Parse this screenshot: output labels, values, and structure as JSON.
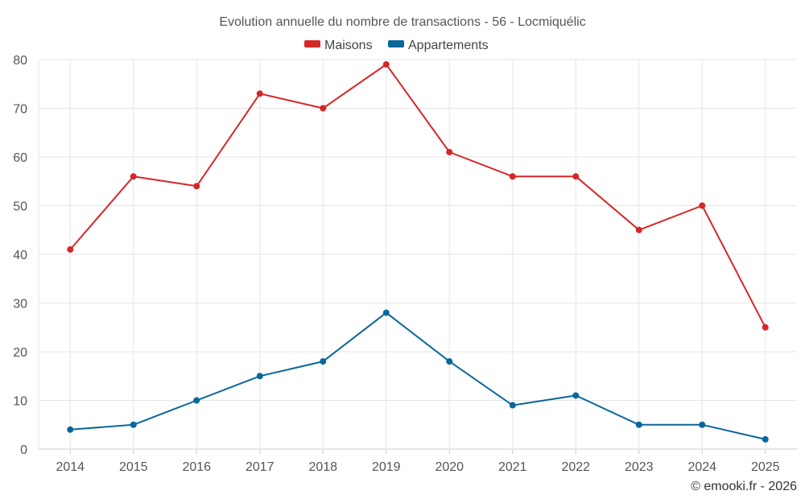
{
  "chart_data": {
    "type": "line",
    "title": "Evolution annuelle du nombre de transactions - 56 - Locmiquélic",
    "categories": [
      "2014",
      "2015",
      "2016",
      "2017",
      "2018",
      "2019",
      "2020",
      "2021",
      "2022",
      "2023",
      "2024",
      "2025"
    ],
    "series": [
      {
        "name": "Maisons",
        "color": "#d62728",
        "values": [
          41,
          56,
          54,
          73,
          70,
          79,
          61,
          56,
          56,
          45,
          50,
          25
        ]
      },
      {
        "name": "Appartements",
        "color": "#09679c",
        "values": [
          4,
          5,
          10,
          15,
          18,
          28,
          18,
          9,
          11,
          5,
          5,
          2
        ]
      }
    ],
    "ylim": [
      0,
      80
    ],
    "yticks": [
      0,
      10,
      20,
      30,
      40,
      50,
      60,
      70,
      80
    ],
    "xlabel": "",
    "ylabel": "",
    "grid": true,
    "legend": "top-center"
  },
  "credit": "© emooki.fr - 2026"
}
